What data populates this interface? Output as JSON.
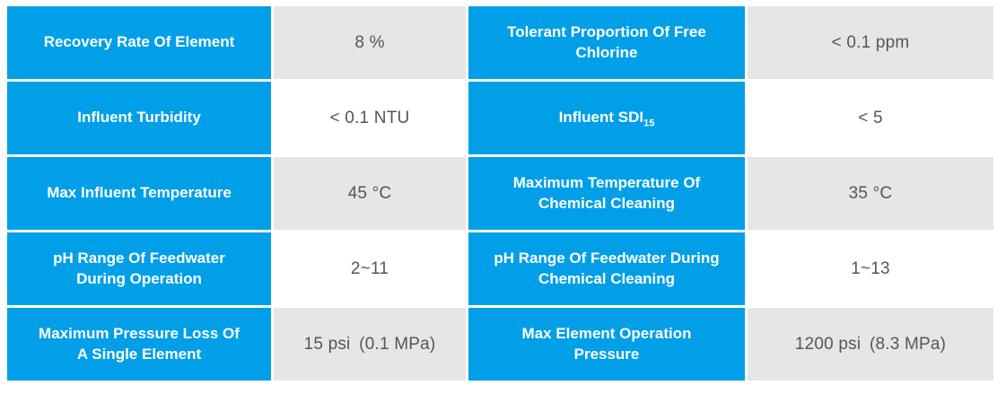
{
  "colors": {
    "header_bg": "#009FE8",
    "header_text": "#FFFFFF",
    "value_text": "#55565A",
    "value_bg_shaded": "#E6E6E6",
    "value_bg_plain": "#FFFFFF",
    "page_bg": "#FFFFFF"
  },
  "table": {
    "columns": [
      "parameter",
      "value",
      "parameter",
      "value"
    ],
    "rows": [
      {
        "shaded": true,
        "left": {
          "label": "Recovery Rate Of Element",
          "value": "8 %"
        },
        "right": {
          "label": "Tolerant Proportion Of Free Chlorine",
          "value": "< 0.1 ppm"
        }
      },
      {
        "shaded": false,
        "left": {
          "label": "Influent Turbidity",
          "value": "< 0.1 NTU"
        },
        "right": {
          "label": "Influent SDI",
          "label_sub": "15",
          "value": "< 5"
        }
      },
      {
        "shaded": true,
        "left": {
          "label": "Max Influent Temperature",
          "value": "45 °C"
        },
        "right": {
          "label": "Maximum Temperature Of Chemical Cleaning",
          "value": "35 °C"
        }
      },
      {
        "shaded": false,
        "left": {
          "label": "pH Range Of Feedwater During Operation",
          "value": "2~11"
        },
        "right": {
          "label": "pH Range Of Feedwater During Chemical Cleaning",
          "value": "1~13"
        }
      },
      {
        "shaded": true,
        "left": {
          "label": "Maximum Pressure Loss Of A Single Element",
          "value": "15 psi (0.1 MPa)"
        },
        "right": {
          "label": "Max Element Operation Pressure",
          "value": "1200 psi (8.3 MPa)"
        }
      }
    ]
  }
}
